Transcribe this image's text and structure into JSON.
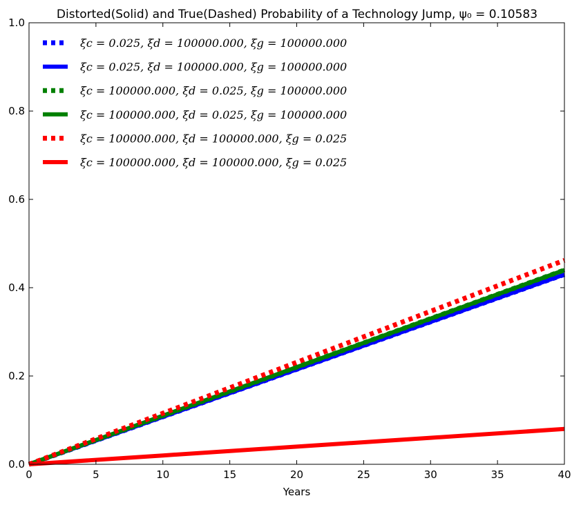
{
  "chart_data": {
    "type": "line",
    "title": "Distorted(Solid) and True(Dashed) Probability of a Technology Jump, ψ₀ = 0.10583",
    "xlabel": "Years",
    "ylabel": "",
    "xlim": [
      0,
      40
    ],
    "ylim": [
      0,
      1.0
    ],
    "x_ticks": [
      0,
      5,
      10,
      15,
      20,
      25,
      30,
      35,
      40
    ],
    "y_ticks": [
      0.0,
      0.2,
      0.4,
      0.6,
      0.8,
      1.0
    ],
    "x_tick_labels": [
      "0",
      "5",
      "10",
      "15",
      "20",
      "25",
      "30",
      "35",
      "40"
    ],
    "y_tick_labels": [
      "0.0",
      "0.2",
      "0.4",
      "0.6",
      "0.8",
      "1.0"
    ],
    "grid": false,
    "legend_position": "top-left",
    "series": [
      {
        "name": "ξc = 0.025, ξd = 100000.000, ξg = 100000.000",
        "style": "dotted",
        "color": "#0000ff",
        "x": [
          0,
          10,
          20,
          30,
          40
        ],
        "y": [
          0,
          0.1075,
          0.215,
          0.3225,
          0.43
        ]
      },
      {
        "name": "ξc = 0.025, ξd = 100000.000, ξg = 100000.000",
        "style": "solid",
        "color": "#0000ff",
        "x": [
          0,
          10,
          20,
          30,
          40
        ],
        "y": [
          0,
          0.1075,
          0.215,
          0.3225,
          0.43
        ]
      },
      {
        "name": "ξc = 100000.000, ξd = 0.025, ξg = 100000.000",
        "style": "dotted",
        "color": "#008000",
        "x": [
          0,
          10,
          20,
          30,
          40
        ],
        "y": [
          0,
          0.11,
          0.22,
          0.33,
          0.44
        ]
      },
      {
        "name": "ξc = 100000.000, ξd = 0.025, ξg = 100000.000",
        "style": "solid",
        "color": "#008000",
        "x": [
          0,
          10,
          20,
          30,
          40
        ],
        "y": [
          0,
          0.11,
          0.22,
          0.33,
          0.44
        ]
      },
      {
        "name": "ξc = 100000.000, ξd = 100000.000, ξg = 0.025",
        "style": "dotted",
        "color": "#ff0000",
        "x": [
          0,
          10,
          20,
          30,
          40
        ],
        "y": [
          0,
          0.1155,
          0.231,
          0.3465,
          0.462
        ]
      },
      {
        "name": "ξc = 100000.000, ξd = 100000.000, ξg = 0.025",
        "style": "solid",
        "color": "#ff0000",
        "x": [
          0,
          10,
          20,
          30,
          40
        ],
        "y": [
          0,
          0.02,
          0.04,
          0.06,
          0.08
        ]
      }
    ]
  }
}
